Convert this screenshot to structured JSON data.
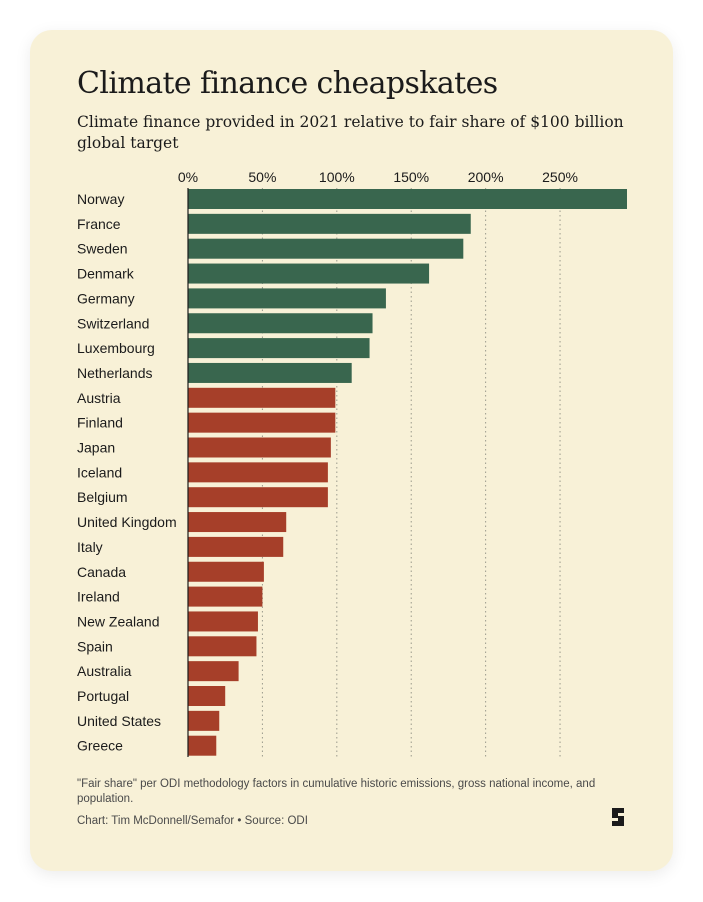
{
  "chart_data": {
    "type": "bar",
    "orientation": "horizontal",
    "title": "Climate finance cheapskates",
    "subtitle": "Climate finance provided in 2021 relative to fair share of $100 billion global target",
    "xlim": [
      0,
      295
    ],
    "x_ticks": [
      0,
      50,
      100,
      150,
      200,
      250
    ],
    "x_tick_labels": [
      "0%",
      "50%",
      "100%",
      "150%",
      "200%",
      "250%"
    ],
    "x_axis_position": "top",
    "grid": "vertical dotted",
    "colors": {
      "above_100": "#39664e",
      "below_100": "#a63f29"
    },
    "categories": [
      "Norway",
      "France",
      "Sweden",
      "Denmark",
      "Germany",
      "Switzerland",
      "Luxembourg",
      "Netherlands",
      "Austria",
      "Finland",
      "Japan",
      "Iceland",
      "Belgium",
      "United Kingdom",
      "Italy",
      "Canada",
      "Ireland",
      "New Zealand",
      "Spain",
      "Australia",
      "Portugal",
      "United States",
      "Greece"
    ],
    "values": [
      295,
      190,
      185,
      162,
      133,
      124,
      122,
      110,
      99,
      99,
      96,
      94,
      94,
      66,
      64,
      51,
      50,
      47,
      46,
      34,
      25,
      21,
      19
    ],
    "footnote": "\"Fair share\" per ODI methodology factors in cumulative historic emissions, gross national income, and population.",
    "credit": "Chart: Tim McDonnell/Semafor • Source: ODI"
  },
  "logo": {
    "name": "semafor-logo",
    "letter": "S"
  }
}
